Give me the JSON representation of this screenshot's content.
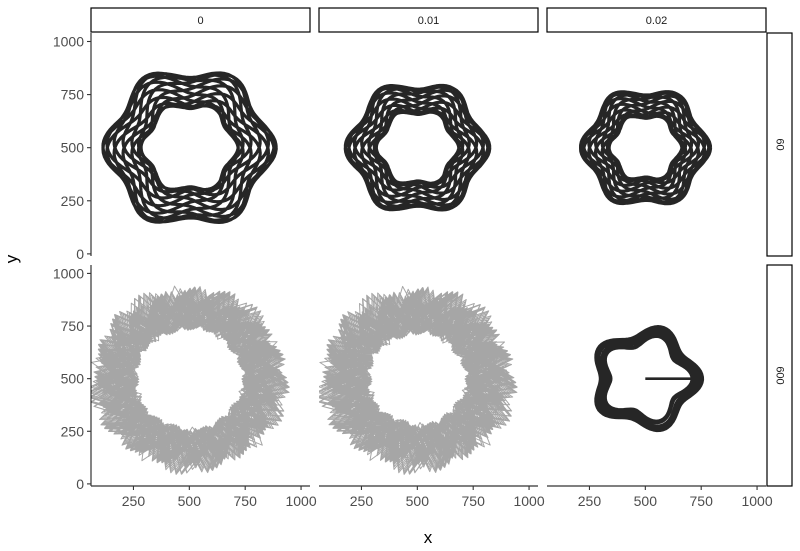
{
  "chart_data": {
    "type": "line",
    "title": "",
    "xlabel": "x",
    "ylabel": "y",
    "xlim": [
      60,
      1040
    ],
    "ylim": [
      -10,
      1040
    ],
    "x_ticks": [
      250,
      500,
      750,
      1000
    ],
    "x_tick_labels": [
      "250",
      "500",
      "750",
      "1000"
    ],
    "y_ticks": [
      0,
      250,
      500,
      750,
      1000
    ],
    "y_tick_labels": [
      "0",
      "250",
      "500",
      "750",
      "1000"
    ],
    "grid": false,
    "legend": "none",
    "facet_columns": [
      "0",
      "0.01",
      "0.02"
    ],
    "facet_rows": [
      "60",
      "600"
    ],
    "line_color": "#000000",
    "center": [
      500,
      500
    ],
    "panels": [
      {
        "col": "0",
        "row": "60",
        "pattern": "hexagonal rosette",
        "radius_min": 200,
        "radius_max": 360
      },
      {
        "col": "0.01",
        "row": "60",
        "pattern": "hexagonal rosette",
        "radius_min": 170,
        "radius_max": 300
      },
      {
        "col": "0.02",
        "row": "60",
        "pattern": "hexagonal rosette",
        "radius_min": 150,
        "radius_max": 270
      },
      {
        "col": "0",
        "row": "600",
        "pattern": "five-pointed star fill",
        "radius_min": 150,
        "radius_max": 460
      },
      {
        "col": "0.01",
        "row": "600",
        "pattern": "five-pointed star fill",
        "radius_min": 120,
        "radius_max": 460
      },
      {
        "col": "0.02",
        "row": "600",
        "pattern": "pentagonal loop",
        "radius_min": 150,
        "radius_max": 260
      }
    ]
  }
}
